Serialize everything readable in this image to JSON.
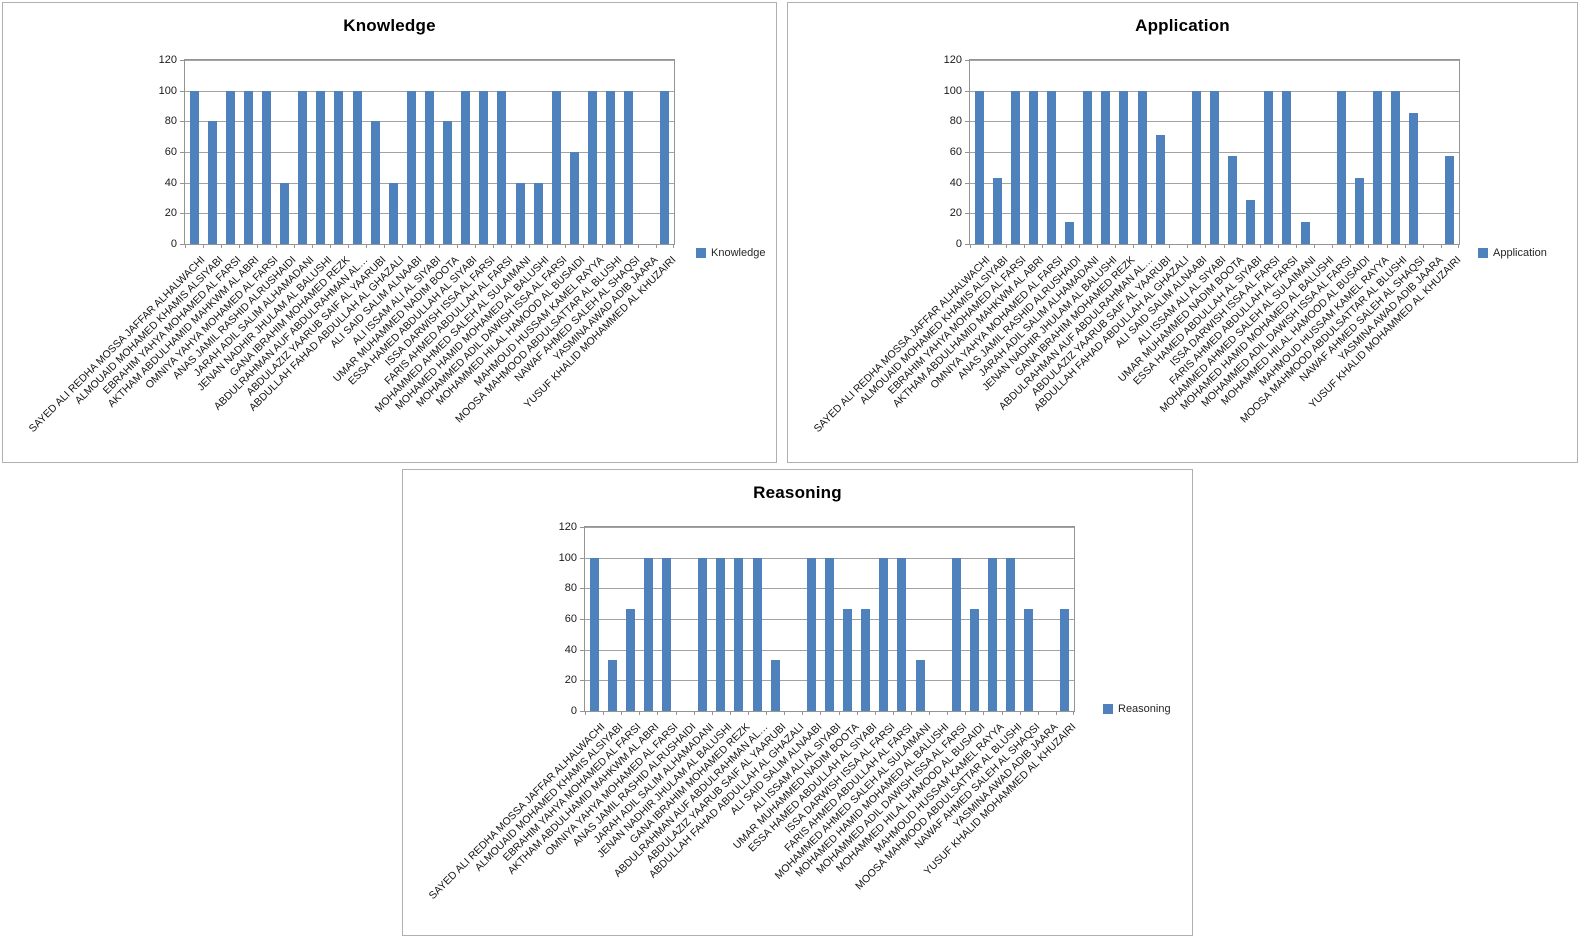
{
  "chart_data": [
    {
      "type": "bar",
      "title": "Knowledge",
      "legend": "Knowledge",
      "legend_position": "right",
      "grid": true,
      "ylim": [
        0,
        120
      ],
      "ytick_step": 20,
      "bar_color": "#4f81bd",
      "categories": [
        "SAYED ALI REDHA MOSSA JAFFAR ALHALWACHI",
        "ALMOUAID MOHAMED KHAMIS ALSIYABI",
        "EBRAHIM YAHYA MOHAMED AL FARSI",
        "AKTHAM ABDULHAMID MAHKWM AL ABRI",
        "OMNIYA YAHYA MOHAMED AL FARSI",
        "ANAS JAMIL RASHID ALRUSHAIDI",
        "JARAH ADIL SALIM ALHAMADANI",
        "JENAN NADHIR JHULAM AL BALUSHI",
        "GANA IBRAHIM MOHAMED REZK",
        "ABDULRAHMAN AUF ABDULRAHMAN AL…",
        "ABDULAZIZ YAARUB SAIF AL YAARUBI",
        "ABDULLAH FAHAD ABDULLAH AL GHAZALI",
        "ALI SAID SALIM ALNAABI",
        "ALI ISSAM ALI AL SIYABI",
        "UMAR MUHAMMED NADIM BOOTA",
        "ESSA HAMED ABDULLAH AL SIYABI",
        "ISSA DARWISH ISSA AL FARSI",
        "FARIS AHMED ABDULLAH AL FARSI",
        "MOHAMMED AHMED SALEH AL SULAIMANI",
        "MOHAMED HAMID MOHAMED AL BALUSHI",
        "MOHAMMED ADIL DAWISH ISSA AL FARSI",
        "MOHAMMED HILAL HAMOOD AL BUSAIDI",
        "MAHMOUD HUSSAM KAMEL RAYYA",
        "MOOSA MAHMOOD ABDULSATTAR AL BLUSHI",
        "NAWAF AHMED SALEH AL SHAQSI",
        "YASMINA AWAD ADIB JAARA",
        "YUSUF KHALID MOHAMMED AL KHUZAIRI"
      ],
      "values": [
        100,
        80,
        100,
        100,
        100,
        40,
        100,
        100,
        100,
        100,
        80,
        40,
        100,
        100,
        80,
        100,
        100,
        100,
        40,
        40,
        100,
        60,
        100,
        100,
        100,
        0,
        100
      ]
    },
    {
      "type": "bar",
      "title": "Application",
      "legend": "Application",
      "legend_position": "right",
      "grid": true,
      "ylim": [
        0,
        120
      ],
      "ytick_step": 20,
      "bar_color": "#4f81bd",
      "categories": [
        "SAYED ALI REDHA MOSSA JAFFAR ALHALWACHI",
        "ALMOUAID MOHAMED KHAMIS ALSIYABI",
        "EBRAHIM YAHYA MOHAMED AL FARSI",
        "AKTHAM ABDULHAMID MAHKWM AL ABRI",
        "OMNIYA YAHYA MOHAMED AL FARSI",
        "ANAS JAMIL RASHID ALRUSHAIDI",
        "JARAH ADIL SALIM ALHAMADANI",
        "JENAN NADHIR JHULAM AL BALUSHI",
        "GANA IBRAHIM MOHAMED REZK",
        "ABDULRAHMAN AUF ABDULRAHMAN AL…",
        "ABDULAZIZ YAARUB SAIF AL YAARUBI",
        "ABDULLAH FAHAD ABDULLAH AL GHAZALI",
        "ALI SAID SALIM ALNAABI",
        "ALI ISSAM ALI AL SIYABI",
        "UMAR MUHAMMED NADIM BOOTA",
        "ESSA HAMED ABDULLAH AL SIYABI",
        "ISSA DARWISH ISSA AL FARSI",
        "FARIS AHMED ABDULLAH AL FARSI",
        "MOHAMMED AHMED SALEH AL SULAIMANI",
        "MOHAMED HAMID MOHAMED AL BALUSHI",
        "MOHAMMED ADIL DAWISH ISSA AL FARSI",
        "MOHAMMED HILAL HAMOOD AL BUSAIDI",
        "MAHMOUD HUSSAM KAMEL RAYYA",
        "MOOSA MAHMOOD ABDULSATTAR AL BLUSHI",
        "NAWAF AHMED SALEH AL SHAQSI",
        "YASMINA AWAD ADIB JAARA",
        "YUSUF KHALID MOHAMMED AL KHUZAIRI"
      ],
      "values": [
        100,
        42.9,
        100,
        100,
        100,
        14.3,
        100,
        100,
        100,
        100,
        71.4,
        0,
        100,
        100,
        57.1,
        28.6,
        100,
        100,
        14.3,
        0,
        100,
        42.9,
        100,
        100,
        85.7,
        0,
        57.1
      ]
    },
    {
      "type": "bar",
      "title": "Reasoning",
      "legend": "Reasoning",
      "legend_position": "right",
      "grid": true,
      "ylim": [
        0,
        120
      ],
      "ytick_step": 20,
      "bar_color": "#4f81bd",
      "categories": [
        "SAYED ALI REDHA MOSSA JAFFAR ALHALWACHI",
        "ALMOUAID MOHAMED KHAMIS ALSIYABI",
        "EBRAHIM YAHYA MOHAMED AL FARSI",
        "AKTHAM ABDULHAMID MAHKWM AL ABRI",
        "OMNIYA YAHYA MOHAMED AL FARSI",
        "ANAS JAMIL RASHID ALRUSHAIDI",
        "JARAH ADIL SALIM ALHAMADANI",
        "JENAN NADHIR JHULAM AL BALUSHI",
        "GANA IBRAHIM MOHAMED REZK",
        "ABDULRAHMAN AUF ABDULRAHMAN AL…",
        "ABDULAZIZ YAARUB SAIF AL YAARUBI",
        "ABDULLAH FAHAD ABDULLAH AL GHAZALI",
        "ALI SAID SALIM ALNAABI",
        "ALI ISSAM ALI AL SIYABI",
        "UMAR MUHAMMED NADIM BOOTA",
        "ESSA HAMED ABDULLAH AL SIYABI",
        "ISSA DARWISH ISSA AL FARSI",
        "FARIS AHMED ABDULLAH AL FARSI",
        "MOHAMMED AHMED SALEH AL SULAIMANI",
        "MOHAMED HAMID MOHAMED AL BALUSHI",
        "MOHAMMED ADIL DAWISH ISSA AL FARSI",
        "MOHAMMED HILAL HAMOOD AL BUSAIDI",
        "MAHMOUD HUSSAM KAMEL RAYYA",
        "MOOSA MAHMOOD ABDULSATTAR AL BLUSHI",
        "NAWAF AHMED SALEH AL SHAQSI",
        "YASMINA AWAD ADIB JAARA",
        "YUSUF KHALID MOHAMMED AL KHUZAIRI"
      ],
      "values": [
        100,
        33.3,
        66.7,
        100,
        100,
        0,
        100,
        100,
        100,
        100,
        33.3,
        0,
        100,
        100,
        66.7,
        66.7,
        100,
        100,
        33.3,
        0,
        100,
        66.7,
        100,
        100,
        66.7,
        0,
        66.7
      ]
    }
  ]
}
